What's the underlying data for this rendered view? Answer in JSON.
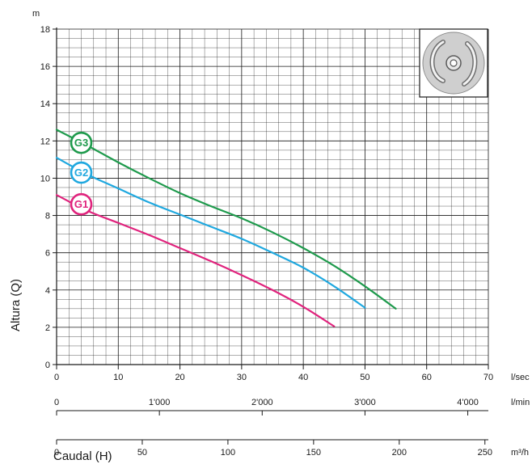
{
  "chart_data": {
    "type": "line",
    "ylabel": "Altura (Q)",
    "yunit": "m",
    "xlabel": "Caudal (H)",
    "ylim": [
      0,
      18
    ],
    "xlim": [
      0,
      70
    ],
    "yticks": [
      0,
      2,
      4,
      6,
      8,
      10,
      12,
      14,
      16,
      18
    ],
    "grid": true,
    "x_axes": [
      {
        "unit": "l/sec",
        "range": [
          0,
          70
        ],
        "ticks": [
          {
            "value": 0,
            "label": "0"
          },
          {
            "value": 10,
            "label": "10"
          },
          {
            "value": 20,
            "label": "20"
          },
          {
            "value": 30,
            "label": "30"
          },
          {
            "value": 40,
            "label": "40"
          },
          {
            "value": 50,
            "label": "50"
          },
          {
            "value": 60,
            "label": "60"
          },
          {
            "value": 70,
            "label": "70"
          }
        ]
      },
      {
        "unit": "l/min",
        "range": [
          0,
          4200
        ],
        "ticks": [
          {
            "value": 0,
            "label": "0"
          },
          {
            "value": 1000,
            "label": "1'000"
          },
          {
            "value": 2000,
            "label": "2'000"
          },
          {
            "value": 3000,
            "label": "3'000"
          },
          {
            "value": 4000,
            "label": "4'000"
          }
        ]
      },
      {
        "unit": "m³/h",
        "range": [
          0,
          252
        ],
        "ticks": [
          {
            "value": 0,
            "label": "0"
          },
          {
            "value": 50,
            "label": "50"
          },
          {
            "value": 100,
            "label": "100"
          },
          {
            "value": 150,
            "label": "150"
          },
          {
            "value": 200,
            "label": "200"
          },
          {
            "value": 250,
            "label": "250"
          }
        ]
      }
    ],
    "series": [
      {
        "name": "G3",
        "color": "#1e9a4c",
        "label_at": {
          "x": 4,
          "y": 11.9
        },
        "x": [
          0,
          5,
          10,
          15,
          20,
          25,
          30,
          35,
          40,
          45,
          50,
          55
        ],
        "y": [
          12.6,
          11.75,
          10.85,
          10.0,
          9.2,
          8.5,
          7.85,
          7.1,
          6.25,
          5.3,
          4.2,
          3.0
        ]
      },
      {
        "name": "G2",
        "color": "#1fa8df",
        "label_at": {
          "x": 4,
          "y": 10.3
        },
        "x": [
          0,
          5,
          10,
          15,
          20,
          25,
          30,
          35,
          40,
          45,
          50
        ],
        "y": [
          11.1,
          10.2,
          9.45,
          8.7,
          8.05,
          7.4,
          6.75,
          6.0,
          5.2,
          4.2,
          3.05
        ]
      },
      {
        "name": "G1",
        "color": "#e0237d",
        "label_at": {
          "x": 4,
          "y": 8.6
        },
        "x": [
          0,
          5,
          10,
          15,
          20,
          25,
          30,
          35,
          40,
          45
        ],
        "y": [
          9.1,
          8.25,
          7.6,
          6.95,
          6.25,
          5.55,
          4.8,
          4.0,
          3.1,
          2.05
        ]
      }
    ],
    "inset_icon": "impeller-icon"
  }
}
